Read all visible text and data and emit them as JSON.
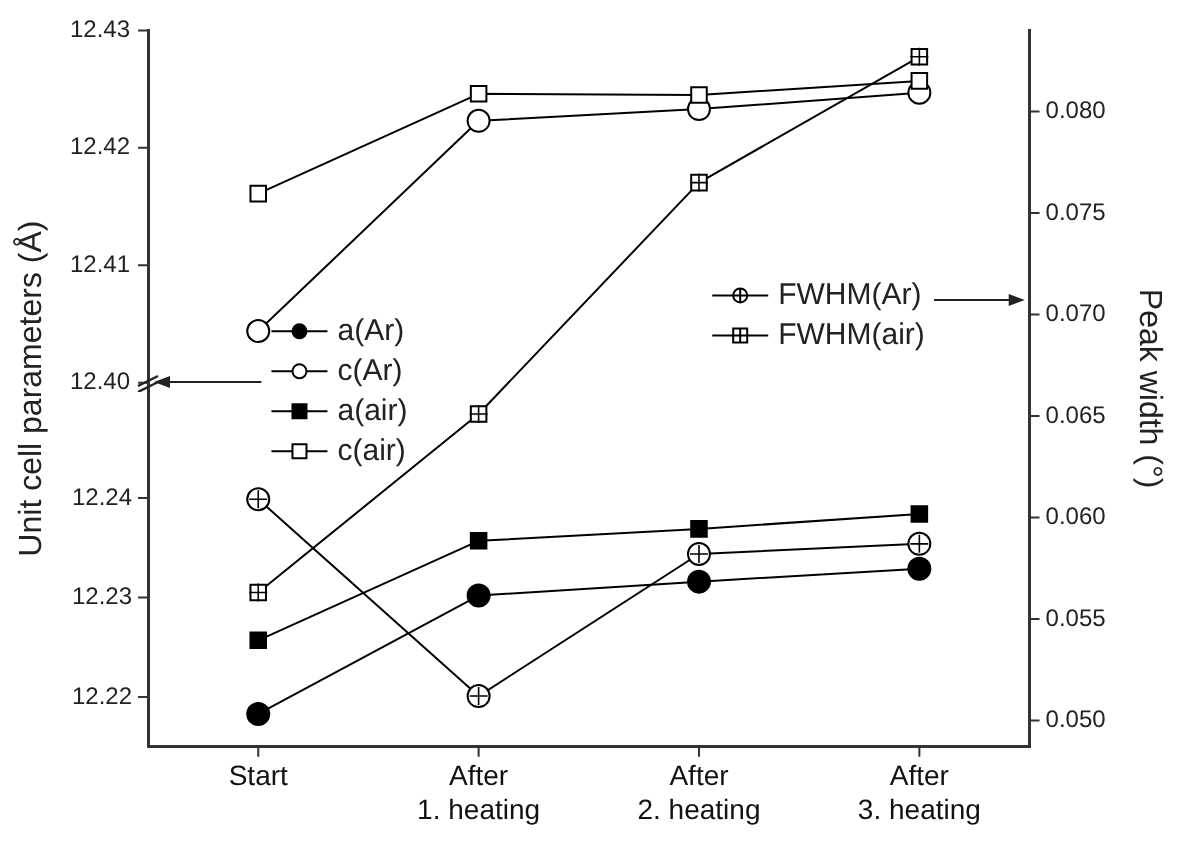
{
  "chart_data": {
    "type": "line",
    "ylabel": "Unit cell parameters (Å)",
    "y2label": "Peak width (°)",
    "categories": [
      "Start",
      "After\n1. heating",
      "After\n2. heating",
      "After\n3. heating"
    ],
    "series": [
      {
        "name": "a(Ar)",
        "color": "#000000",
        "marker": "circle",
        "values": [
          12.2183,
          12.2302,
          12.2316,
          12.2329
        ]
      },
      {
        "name": "c(Ar)",
        "color": "#000000",
        "marker": "circle",
        "axis": "y3",
        "values": [
          12.4044,
          12.4223,
          12.4233,
          12.4247
        ]
      },
      {
        "name": "a(air)",
        "color": "#000000",
        "marker": "square",
        "values": [
          12.2257,
          12.2357,
          12.2369,
          12.2384
        ]
      },
      {
        "name": "c(air)",
        "color": "#000000",
        "marker": "square",
        "axis": "y3",
        "values": [
          12.4161,
          12.4246,
          12.4245,
          12.4257
        ]
      },
      {
        "name": "FWHM(Ar)",
        "color": "#000000",
        "marker": "circle",
        "axis": "y2",
        "values": [
          0.0609,
          0.0512,
          0.0582,
          0.0587
        ]
      },
      {
        "name": "FWHM(air)",
        "color": "#000000",
        "marker": "square",
        "axis": "y2",
        "values": [
          0.0563,
          0.0651,
          0.0765,
          0.0827
        ]
      }
    ],
    "ylim": [
      12.215,
      12.287
    ],
    "yticks": [
      12.22,
      12.23,
      12.24
    ],
    "y3lim": [
      12.369,
      12.43
    ],
    "y3ticks": [
      {
        "value": 12.4,
        "label": "12.40"
      },
      12.41,
      12.42,
      12.43
    ],
    "y2lim": [
      0.0487,
      0.084
    ],
    "y2ticks": [
      {
        "value": 0.05,
        "label": "0.050"
      },
      {
        "value": 0.055,
        "label": "0.055"
      },
      {
        "value": 0.06,
        "label": "0.060"
      },
      {
        "value": 0.065,
        "label": "0.065"
      },
      {
        "value": 0.07,
        "label": "0.070"
      },
      {
        "value": 0.075,
        "label": "0.075"
      },
      {
        "value": 0.08,
        "label": "0.080"
      }
    ],
    "legend": "left",
    "grid": false,
    "line_style": "solid"
  }
}
